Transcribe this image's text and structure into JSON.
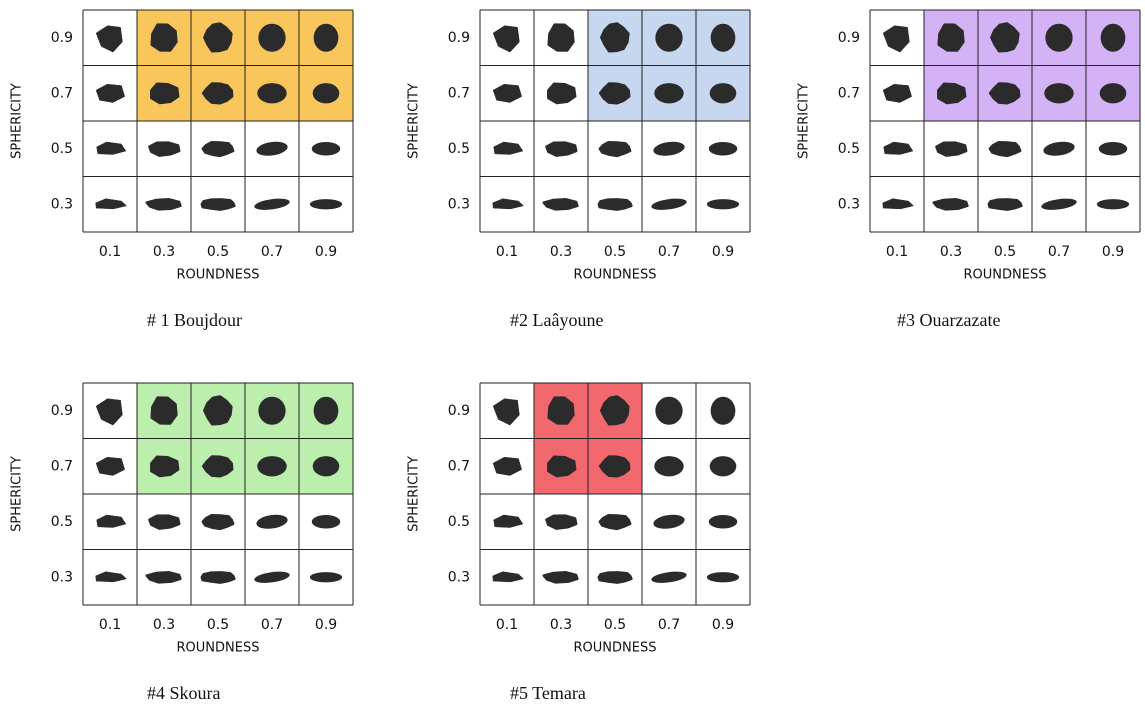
{
  "axes": {
    "x_label": "ROUNDNESS",
    "y_label": "SPHERICITY",
    "roundness": [
      0.1,
      0.3,
      0.5,
      0.7,
      0.9
    ],
    "sphericity": [
      0.9,
      0.7,
      0.5,
      0.3
    ]
  },
  "panels": [
    {
      "caption": "# 1 Boujdour",
      "highlight": {
        "color": "#f9c65c",
        "roundness": [
          0.3,
          0.5,
          0.7,
          0.9
        ],
        "sphericity": [
          0.9,
          0.7
        ]
      }
    },
    {
      "caption": "#2 Laâyoune",
      "highlight": {
        "color": "#c6d7ef",
        "roundness": [
          0.5,
          0.7,
          0.9
        ],
        "sphericity": [
          0.9,
          0.7
        ]
      }
    },
    {
      "caption": "#3 Ouarzazate",
      "highlight": {
        "color": "#d3b2f6",
        "roundness": [
          0.3,
          0.5,
          0.7,
          0.9
        ],
        "sphericity": [
          0.9,
          0.7
        ]
      }
    },
    {
      "caption": "#4 Skoura",
      "highlight": {
        "color": "#bcefae",
        "roundness": [
          0.3,
          0.5,
          0.7,
          0.9
        ],
        "sphericity": [
          0.9,
          0.7
        ]
      }
    },
    {
      "caption": "#5 Temara",
      "highlight": {
        "color": "#f2686f",
        "roundness": [
          0.3,
          0.5
        ],
        "sphericity": [
          0.9,
          0.7
        ]
      }
    }
  ]
}
